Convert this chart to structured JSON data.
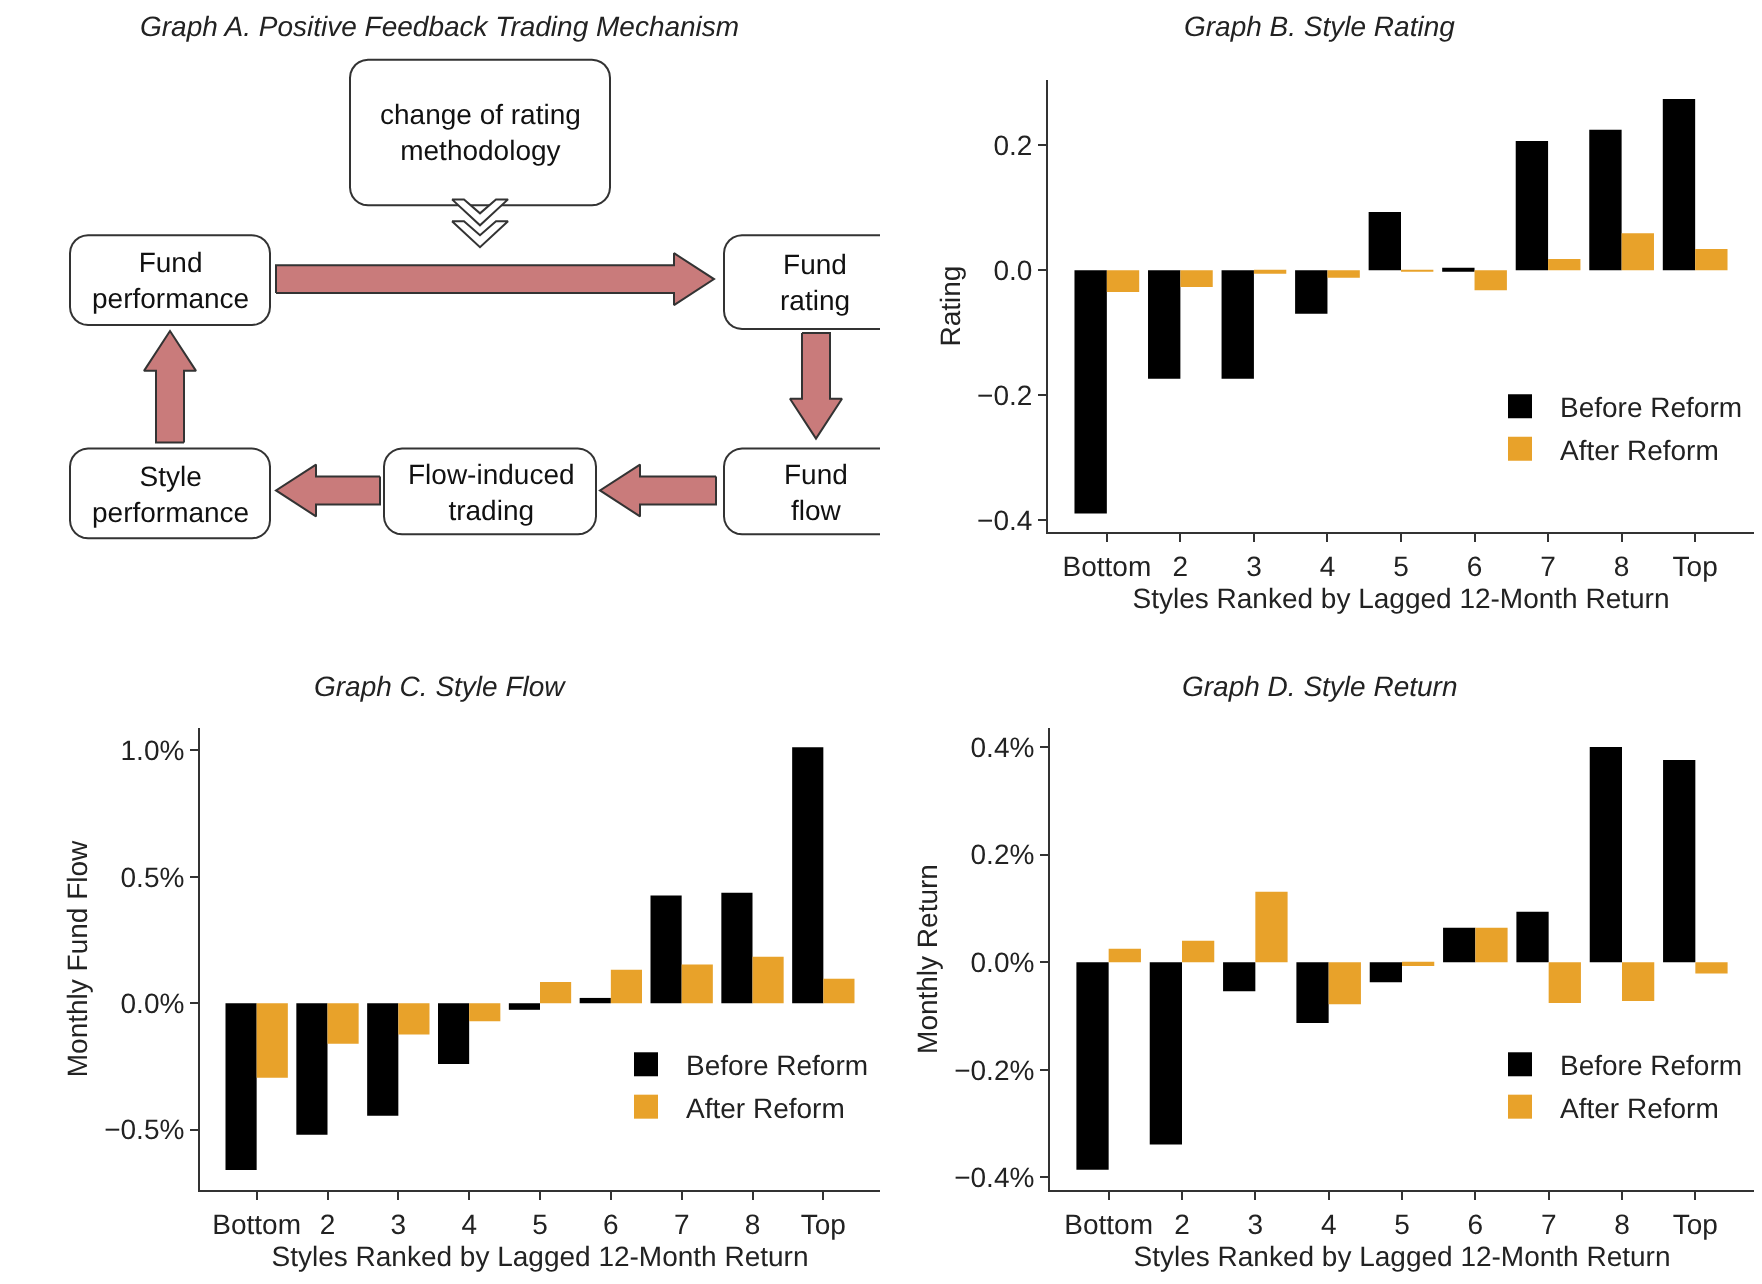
{
  "chart_data": [
    {
      "type": "other",
      "title": "Graph A. Positive Feedback Trading Mechanism",
      "annotations": [
        "change of rating methodology",
        "Fund performance",
        "Fund rating",
        "Fund flow",
        "Flow-induced trading",
        "Style performance"
      ]
    },
    {
      "type": "bar",
      "title": "Graph B. Style Rating",
      "xlabel": "Styles Ranked by Lagged 12-Month Return",
      "ylabel": "Rating",
      "categories": [
        "Bottom",
        "2",
        "3",
        "4",
        "5",
        "6",
        "7",
        "8",
        "Top"
      ],
      "series": [
        {
          "name": "Before Reform",
          "color": "#000000",
          "values": [
            -0.39,
            -0.174,
            -0.174,
            -0.07,
            0.093,
            0.002,
            0.207,
            0.225,
            0.274
          ]
        },
        {
          "name": "After Reform",
          "color": "#e8a22a",
          "values": [
            -0.035,
            -0.027,
            -0.003,
            -0.012,
            -0.001,
            -0.032,
            0.018,
            0.059,
            0.034
          ]
        }
      ],
      "ylim": [
        -0.42,
        0.305
      ],
      "yticks": [
        {
          "value": -0.4,
          "label": "−0.4"
        },
        {
          "value": -0.2,
          "label": "−0.2"
        },
        {
          "value": 0,
          "label": "0.0"
        },
        {
          "value": 0.2,
          "label": "0.2"
        }
      ],
      "grid": false,
      "legend": "bottom right"
    },
    {
      "type": "bar",
      "title": "Graph C. Style Flow",
      "xlabel": "Styles Ranked by Lagged 12-Month Return",
      "ylabel": "Monthly Fund Flow",
      "categories": [
        "Bottom",
        "2",
        "3",
        "4",
        "5",
        "6",
        "7",
        "8",
        "Top"
      ],
      "series": [
        {
          "name": "Before Reform",
          "color": "#000000",
          "values": [
            -0.66,
            -0.52,
            -0.445,
            -0.24,
            -0.026,
            0.021,
            0.426,
            0.437,
            1.013
          ]
        },
        {
          "name": "After Reform",
          "color": "#e8a22a",
          "values": [
            -0.295,
            -0.16,
            -0.124,
            -0.071,
            0.084,
            0.132,
            0.153,
            0.184,
            0.097
          ]
        }
      ],
      "ylim": [
        -0.74,
        1.09
      ],
      "yticks": [
        {
          "value": -0.5,
          "label": "−0.5%"
        },
        {
          "value": 0,
          "label": "0.0%"
        },
        {
          "value": 0.5,
          "label": "0.5%"
        },
        {
          "value": 1.0,
          "label": "1.0%"
        }
      ],
      "grid": false,
      "legend": "bottom right"
    },
    {
      "type": "bar",
      "title": "Graph D. Style Return",
      "xlabel": "Styles Ranked by Lagged 12-Month Return",
      "ylabel": "Monthly Return",
      "categories": [
        "Bottom",
        "2",
        "3",
        "4",
        "5",
        "6",
        "7",
        "8",
        "Top"
      ],
      "series": [
        {
          "name": "Before Reform",
          "color": "#000000",
          "values": [
            -0.386,
            -0.339,
            -0.054,
            -0.113,
            -0.037,
            0.064,
            0.094,
            0.4,
            0.376
          ]
        },
        {
          "name": "After Reform",
          "color": "#e8a22a",
          "values": [
            0.025,
            0.04,
            0.131,
            -0.078,
            -0.007,
            0.064,
            -0.076,
            -0.072,
            -0.021
          ]
        }
      ],
      "ylim": [
        -0.424,
        0.436
      ],
      "yticks": [
        {
          "value": -0.4,
          "label": "−0.4%"
        },
        {
          "value": -0.2,
          "label": "−0.2%"
        },
        {
          "value": 0,
          "label": "0.0%"
        },
        {
          "value": 0.2,
          "label": "0.2%"
        },
        {
          "value": 0.4,
          "label": "0.4%"
        }
      ],
      "grid": false,
      "legend": "bottom right"
    }
  ]
}
